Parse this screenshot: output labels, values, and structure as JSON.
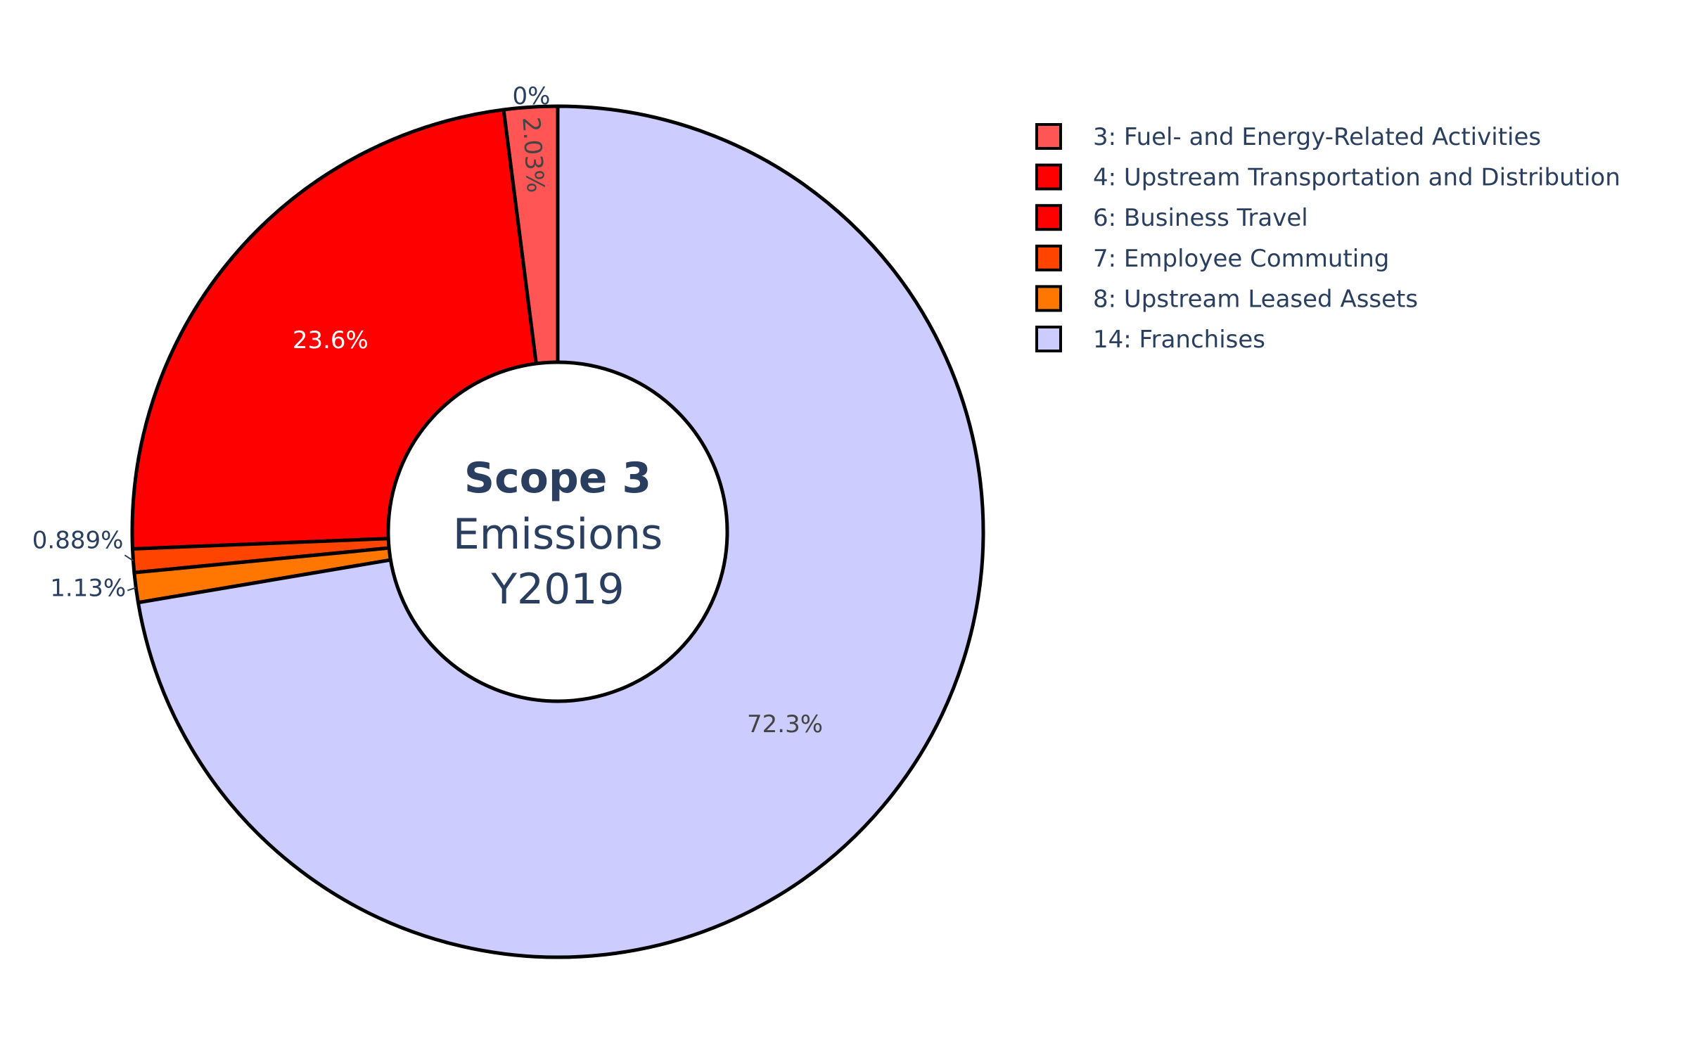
{
  "chart_data": {
    "type": "pie",
    "hole": true,
    "center_text": {
      "bold": "Scope 3",
      "line2": "Emissions",
      "line3": "Y2019"
    },
    "slices": [
      {
        "label": "3: Fuel- and Energy-Related Activities",
        "percent": 2.03,
        "text": "2.03%",
        "color": "#ff5555",
        "text_color": "#444444"
      },
      {
        "label": "4: Upstream Transportation and Distribution",
        "percent": 0.0,
        "text": "0%",
        "color": "#ff0000",
        "text_color": "#2a3f5f"
      },
      {
        "label": "6: Business Travel",
        "percent": 23.6,
        "text": "23.6%",
        "color": "#ff0000",
        "text_color": "#ffffff"
      },
      {
        "label": "7: Employee Commuting",
        "percent": 0.889,
        "text": "0.889%",
        "color": "#ff4400",
        "text_color": "#2a3f5f"
      },
      {
        "label": "8: Upstream Leased Assets",
        "percent": 1.13,
        "text": "1.13%",
        "color": "#ff7700",
        "text_color": "#2a3f5f"
      },
      {
        "label": "14: Franchises",
        "percent": 72.3,
        "text": "72.3%",
        "color": "#ccccff",
        "text_color": "#444444"
      }
    ],
    "legend_position": "top-right"
  }
}
